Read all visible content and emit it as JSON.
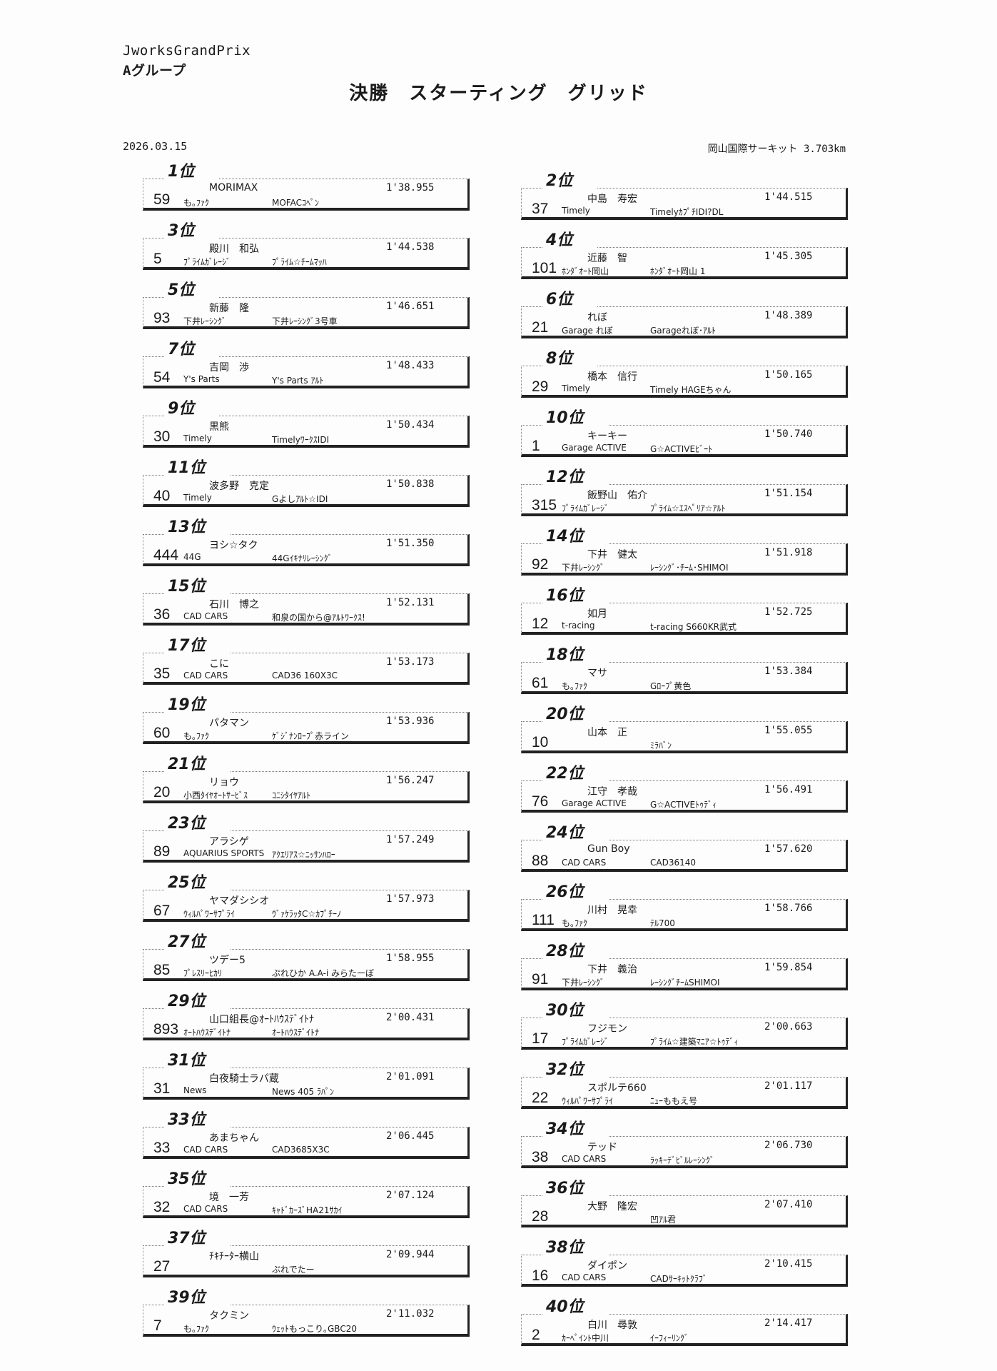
{
  "header": {
    "event": "JworksGrandPrix",
    "group": "Aグループ",
    "title": "決勝　スターティング　グリッド",
    "date": "2026.03.15",
    "circuit": "岡山国際サーキット 3.703km"
  },
  "rank_suffix": "位",
  "grid": [
    {
      "pos": "1",
      "num": "59",
      "driver": "MORIMAX",
      "team": "も｡ﾌｧｸ",
      "car": "MOFACｺﾍﾟﾝ",
      "time": "1'38.955"
    },
    {
      "pos": "2",
      "num": "37",
      "driver": "中島　寿宏",
      "team": "Timely",
      "car": "TimelyｶﾌﾟﾁIDI?DL",
      "time": "1'44.515"
    },
    {
      "pos": "3",
      "num": "5",
      "driver": "殿川　和弘",
      "team": "ﾌﾟﾗｲﾑｶﾞﾚｰｼﾞ",
      "car": "ﾌﾟﾗｲﾑ☆ﾁｰﾑﾏｯﾊ",
      "time": "1'44.538"
    },
    {
      "pos": "4",
      "num": "101",
      "driver": "近藤　智",
      "team": "ﾎﾝﾀﾞｵｰﾄ岡山",
      "car": "ﾎﾝﾀﾞｵｰﾄ岡山 1",
      "time": "1'45.305"
    },
    {
      "pos": "5",
      "num": "93",
      "driver": "新藤　隆",
      "team": "下井ﾚｰｼﾝｸﾞ",
      "car": "下井ﾚｰｼﾝｸﾞ3号車",
      "time": "1'46.651"
    },
    {
      "pos": "6",
      "num": "21",
      "driver": "れぼ",
      "team": "Garage れぼ",
      "car": "Garageれぼ･ｱﾙﾄ",
      "time": "1'48.389"
    },
    {
      "pos": "7",
      "num": "54",
      "driver": "吉岡　渉",
      "team": "Y's Parts",
      "car": "Y's Parts ｱﾙﾄ",
      "time": "1'48.433"
    },
    {
      "pos": "8",
      "num": "29",
      "driver": "橋本　信行",
      "team": "Timely",
      "car": "Timely HAGEちゃん",
      "time": "1'50.165"
    },
    {
      "pos": "9",
      "num": "30",
      "driver": "黒熊",
      "team": "Timely",
      "car": "TimelyﾜｰｸｽIDI",
      "time": "1'50.434"
    },
    {
      "pos": "10",
      "num": "1",
      "driver": "キーキー",
      "team": "Garage ACTIVE",
      "car": "G☆ACTIVEﾋﾞｰﾄ",
      "time": "1'50.740"
    },
    {
      "pos": "11",
      "num": "40",
      "driver": "波多野　克定",
      "team": "Timely",
      "car": "Gよしｱﾙﾄ☆IDI",
      "time": "1'50.838"
    },
    {
      "pos": "12",
      "num": "315",
      "driver": "飯野山　佑介",
      "team": "ﾌﾟﾗｲﾑｶﾞﾚｰｼﾞ",
      "car": "ﾌﾟﾗｲﾑ☆ｴｽﾍﾟﾘｱ☆ｱﾙﾄ",
      "time": "1'51.154"
    },
    {
      "pos": "13",
      "num": "444",
      "driver": "ヨシ☆タク",
      "team": "44G",
      "car": "44Gｲｷﾅﾘﾚｰｼﾝｸﾞ",
      "time": "1'51.350"
    },
    {
      "pos": "14",
      "num": "92",
      "driver": "下井　健太",
      "team": "下井ﾚｰｼﾝｸﾞ",
      "car": "ﾚｰｼﾝｸﾞ･ﾁｰﾑ･SHIMOI",
      "time": "1'51.918"
    },
    {
      "pos": "15",
      "num": "36",
      "driver": "石川　博之",
      "team": "CAD CARS",
      "car": "和泉の国から@ｱﾙﾄﾜｰｸｽ!",
      "time": "1'52.131"
    },
    {
      "pos": "16",
      "num": "12",
      "driver": "如月",
      "team": "t-racing",
      "car": "t-racing S660KR武式",
      "time": "1'52.725"
    },
    {
      "pos": "17",
      "num": "35",
      "driver": "こに",
      "team": "CAD CARS",
      "car": "CAD36 160X3C",
      "time": "1'53.173"
    },
    {
      "pos": "18",
      "num": "61",
      "driver": "マサ",
      "team": "も｡ﾌｧｸ",
      "car": "Gﾛｰﾌﾟ黄色",
      "time": "1'53.384"
    },
    {
      "pos": "19",
      "num": "60",
      "driver": "パタマン",
      "team": "も｡ﾌｧｸ",
      "car": "ｹﾞｼﾞﾅﾝﾛｰﾌﾟ赤ライン",
      "time": "1'53.936"
    },
    {
      "pos": "20",
      "num": "10",
      "driver": "山本　正",
      "team": "",
      "car": "ﾐﾗﾊﾞﾝ",
      "time": "1'55.055"
    },
    {
      "pos": "21",
      "num": "20",
      "driver": "リョウ",
      "team": "小西ﾀｲﾔｵｰﾄｻｰﾋﾞｽ",
      "car": "ｺﾆｼﾀｲﾔｱﾙﾄ",
      "time": "1'56.247"
    },
    {
      "pos": "22",
      "num": "76",
      "driver": "江守　孝哉",
      "team": "Garage ACTIVE",
      "car": "G☆ACTIVEﾄｩﾃﾞｨ",
      "time": "1'56.491"
    },
    {
      "pos": "23",
      "num": "89",
      "driver": "アラシゲ",
      "team": "AQUARIUS SPORTS",
      "car": "ｱｸｴﾘｱｽ☆ﾆｯｻﾝﾊﾛｰ",
      "time": "1'57.249"
    },
    {
      "pos": "24",
      "num": "88",
      "driver": "Gun Boy",
      "team": "CAD CARS",
      "car": "CAD36140",
      "time": "1'57.620"
    },
    {
      "pos": "25",
      "num": "67",
      "driver": "ヤマダシシオ",
      "team": "ｳｨﾙﾊﾟﾜｰｻﾌﾟﾗｲ",
      "car": "ｳﾞｧｹﾗｯﾀC☆ｶﾌﾟﾁｰﾉ",
      "time": "1'57.973"
    },
    {
      "pos": "26",
      "num": "111",
      "driver": "川村　晃幸",
      "team": "も｡ﾌｧｸ",
      "car": "ﾃﾙ700",
      "time": "1'58.766"
    },
    {
      "pos": "27",
      "num": "85",
      "driver": "ツデー5",
      "team": "ﾌﾟﾚｽﾘｰﾋｶﾘ",
      "car": "ぷれひか A.A-i みらたーぼ",
      "time": "1'58.955"
    },
    {
      "pos": "28",
      "num": "91",
      "driver": "下井　義治",
      "team": "下井ﾚｰｼﾝｸﾞ",
      "car": "ﾚｰｼﾝｸﾞﾁｰﾑSHIMOI",
      "time": "1'59.854"
    },
    {
      "pos": "29",
      "num": "893",
      "driver": "山口組長@ｵｰﾄﾊｳｽﾃﾞｲﾄﾅ",
      "team": "ｵｰﾄﾊｳｽﾃﾞｲﾄﾅ",
      "car": "ｵｰﾄﾊｳｽﾃﾞｲﾄﾅ",
      "time": "2'00.431"
    },
    {
      "pos": "30",
      "num": "17",
      "driver": "フジモン",
      "team": "ﾌﾟﾗｲﾑｶﾞﾚｰｼﾞ",
      "car": "ﾌﾟﾗｲﾑ☆建築ﾏﾆｱ☆ﾄｩﾃﾞｨ",
      "time": "2'00.663"
    },
    {
      "pos": "31",
      "num": "31",
      "driver": "白夜騎士ラパ蔵",
      "team": "News",
      "car": "News 405 ﾗﾊﾟﾝ",
      "time": "2'01.091"
    },
    {
      "pos": "32",
      "num": "22",
      "driver": "スポルテ660",
      "team": "ｳｨﾙﾊﾟﾜｰｻﾌﾟﾗｲ",
      "car": "ﾆｭｰももえ号",
      "time": "2'01.117"
    },
    {
      "pos": "33",
      "num": "33",
      "driver": "あまちゃん",
      "team": "CAD CARS",
      "car": "CAD3685X3C",
      "time": "2'06.445"
    },
    {
      "pos": "34",
      "num": "38",
      "driver": "テッド",
      "team": "CAD CARS",
      "car": "ﾗｯｷｰﾃﾞﾋﾞﾙﾚｰｼﾝｸﾞ",
      "time": "2'06.730"
    },
    {
      "pos": "35",
      "num": "32",
      "driver": "境　一芳",
      "team": "CAD CARS",
      "car": "ｷｬﾄﾞｶｰｽﾞHA21ｻｶｲ",
      "time": "2'07.124"
    },
    {
      "pos": "36",
      "num": "28",
      "driver": "大野　隆宏",
      "team": "",
      "car": "凹ｱﾙ君",
      "time": "2'07.410"
    },
    {
      "pos": "37",
      "num": "27",
      "driver": "ﾁｷﾁｰﾀｰ横山",
      "team": "",
      "car": "ぷれでたー",
      "time": "2'09.944"
    },
    {
      "pos": "38",
      "num": "16",
      "driver": "ダイポン",
      "team": "CAD CARS",
      "car": "CADｻｰｷｯﾄｸﾗﾌﾞ",
      "time": "2'10.415"
    },
    {
      "pos": "39",
      "num": "7",
      "driver": "タクミン",
      "team": "も｡ﾌｧｸ",
      "car": "ｳｪｯﾄもっこり｡GBC20",
      "time": "2'11.032"
    },
    {
      "pos": "40",
      "num": "2",
      "driver": "白川　尋敦",
      "team": "ｶｰﾍﾟｲﾝﾄ中川",
      "car": "ｲｰﾌｨｰﾘﾝｸﾞ",
      "time": "2'14.417"
    }
  ]
}
